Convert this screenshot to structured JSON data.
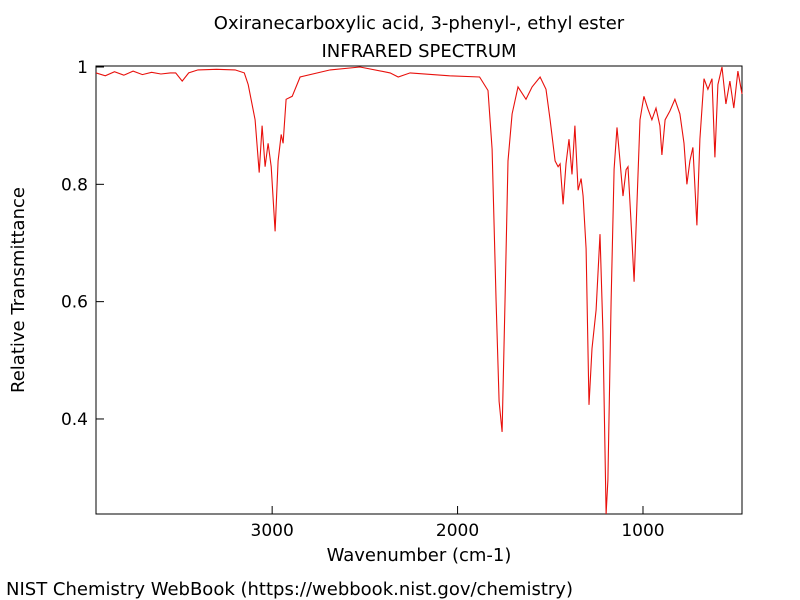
{
  "chart_data": {
    "type": "line",
    "title": "Oxiranecarboxylic acid, 3-phenyl-, ethyl ester",
    "subtitle": "INFRARED SPECTRUM",
    "x_label": "Wavenumber (cm-1)",
    "y_label": "Relative Transmittance",
    "footer": "NIST Chemistry WebBook (https://webbook.nist.gov/chemistry)",
    "xlim": [
      3950,
      466
    ],
    "ylim": [
      0.238,
      1.0
    ],
    "xticks": [
      3000,
      2000,
      1000
    ],
    "yticks": [
      1,
      0.8,
      0.6,
      0.4
    ],
    "x": [
      3950,
      3900,
      3850,
      3800,
      3750,
      3700,
      3650,
      3600,
      3550,
      3520,
      3485,
      3450,
      3400,
      3300,
      3200,
      3150,
      3129,
      3092,
      3070,
      3054,
      3038,
      3022,
      3005,
      2984,
      2968,
      2951,
      2941,
      2925,
      2892,
      2849,
      2687,
      2526,
      2364,
      2320,
      2256,
      2043,
      1881,
      1836,
      1814,
      1792,
      1776,
      1760,
      1744,
      1728,
      1706,
      1674,
      1631,
      1598,
      1555,
      1523,
      1501,
      1474,
      1458,
      1447,
      1431,
      1415,
      1399,
      1383,
      1367,
      1350,
      1334,
      1323,
      1307,
      1291,
      1275,
      1253,
      1232,
      1216,
      1199,
      1189,
      1172,
      1156,
      1140,
      1124,
      1108,
      1091,
      1081,
      1065,
      1048,
      1032,
      1016,
      995,
      973,
      952,
      930,
      909,
      898,
      881,
      855,
      828,
      801,
      779,
      763,
      747,
      731,
      709,
      693,
      671,
      650,
      628,
      612,
      596,
      574,
      553,
      531,
      510,
      488,
      466
    ],
    "series": [
      {
        "name": "spectrum",
        "color": "#e8100c",
        "values": [
          0.99,
          0.985,
          0.992,
          0.986,
          0.993,
          0.987,
          0.991,
          0.988,
          0.99,
          0.99,
          0.976,
          0.99,
          0.995,
          0.996,
          0.995,
          0.99,
          0.97,
          0.91,
          0.82,
          0.9,
          0.83,
          0.87,
          0.83,
          0.72,
          0.84,
          0.885,
          0.87,
          0.945,
          0.95,
          0.983,
          0.995,
          1.0,
          0.99,
          0.983,
          0.99,
          0.985,
          0.983,
          0.96,
          0.86,
          0.6,
          0.43,
          0.378,
          0.6,
          0.84,
          0.92,
          0.966,
          0.945,
          0.966,
          0.983,
          0.962,
          0.91,
          0.84,
          0.83,
          0.835,
          0.766,
          0.835,
          0.877,
          0.817,
          0.9,
          0.79,
          0.81,
          0.78,
          0.69,
          0.424,
          0.52,
          0.586,
          0.715,
          0.55,
          0.238,
          0.296,
          0.6,
          0.826,
          0.897,
          0.84,
          0.78,
          0.825,
          0.83,
          0.74,
          0.634,
          0.774,
          0.91,
          0.95,
          0.928,
          0.91,
          0.93,
          0.9,
          0.85,
          0.91,
          0.925,
          0.945,
          0.92,
          0.87,
          0.8,
          0.84,
          0.863,
          0.73,
          0.877,
          0.98,
          0.962,
          0.98,
          0.846,
          0.97,
          1.0,
          0.937,
          0.976,
          0.93,
          0.993,
          0.954
        ]
      }
    ]
  }
}
